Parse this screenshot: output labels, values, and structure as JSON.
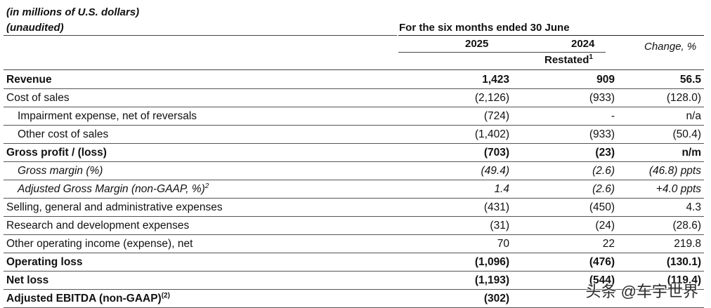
{
  "header": {
    "units": "(in millions of U.S. dollars)",
    "unaudited": "(unaudited)",
    "period": "For the six months ended 30 June",
    "col_2025": "2025",
    "col_2024": "2024",
    "col_change": "Change, %",
    "restated": "Restated",
    "restated_sup": "1"
  },
  "rows": [
    {
      "label": "Revenue",
      "sup": "",
      "v2025": "1,423",
      "v2024": "909",
      "change": "56.5",
      "style": "bold",
      "indent": false
    },
    {
      "label": "Cost of sales",
      "sup": "",
      "v2025": "(2,126)",
      "v2024": "(933)",
      "change": "(128.0)",
      "style": "normal",
      "indent": false
    },
    {
      "label": "Impairment expense, net of reversals",
      "sup": "",
      "v2025": "(724)",
      "v2024": "-",
      "change": "n/a",
      "style": "normal",
      "indent": true
    },
    {
      "label": "Other cost of sales",
      "sup": "",
      "v2025": "(1,402)",
      "v2024": "(933)",
      "change": "(50.4)",
      "style": "normal",
      "indent": true
    },
    {
      "label": "Gross profit / (loss)",
      "sup": "",
      "v2025": "(703)",
      "v2024": "(23)",
      "change": "n/m",
      "style": "bold",
      "indent": false
    },
    {
      "label": "Gross margin (%)",
      "sup": "",
      "v2025": "(49.4)",
      "v2024": "(2.6)",
      "change": "(46.8) ppts",
      "style": "italic",
      "indent": true
    },
    {
      "label": "Adjusted Gross Margin (non-GAAP, %)",
      "sup": "2",
      "v2025": "1.4",
      "v2024": "(2.6)",
      "change": "+4.0 ppts",
      "style": "italic",
      "indent": true
    },
    {
      "label": "Selling, general and administrative expenses",
      "sup": "",
      "v2025": "(431)",
      "v2024": "(450)",
      "change": "4.3",
      "style": "normal",
      "indent": false
    },
    {
      "label": "Research and development expenses",
      "sup": "",
      "v2025": "(31)",
      "v2024": "(24)",
      "change": "(28.6)",
      "style": "normal",
      "indent": false
    },
    {
      "label": "Other operating income (expense), net",
      "sup": "",
      "v2025": "70",
      "v2024": "22",
      "change": "219.8",
      "style": "normal",
      "indent": false
    },
    {
      "label": "Operating loss",
      "sup": "",
      "v2025": "(1,096)",
      "v2024": "(476)",
      "change": "(130.1)",
      "style": "bold",
      "indent": false
    },
    {
      "label": "Net loss",
      "sup": "",
      "v2025": "(1,193)",
      "v2024": "(544)",
      "change": "(119.4)",
      "style": "bold",
      "indent": false
    },
    {
      "label": "Adjusted EBITDA (non-GAAP)",
      "sup": "(2)",
      "v2025": "(302)",
      "v2024": "",
      "change": "",
      "style": "bold",
      "indent": false
    }
  ],
  "watermark": "头条 @车宇世界"
}
